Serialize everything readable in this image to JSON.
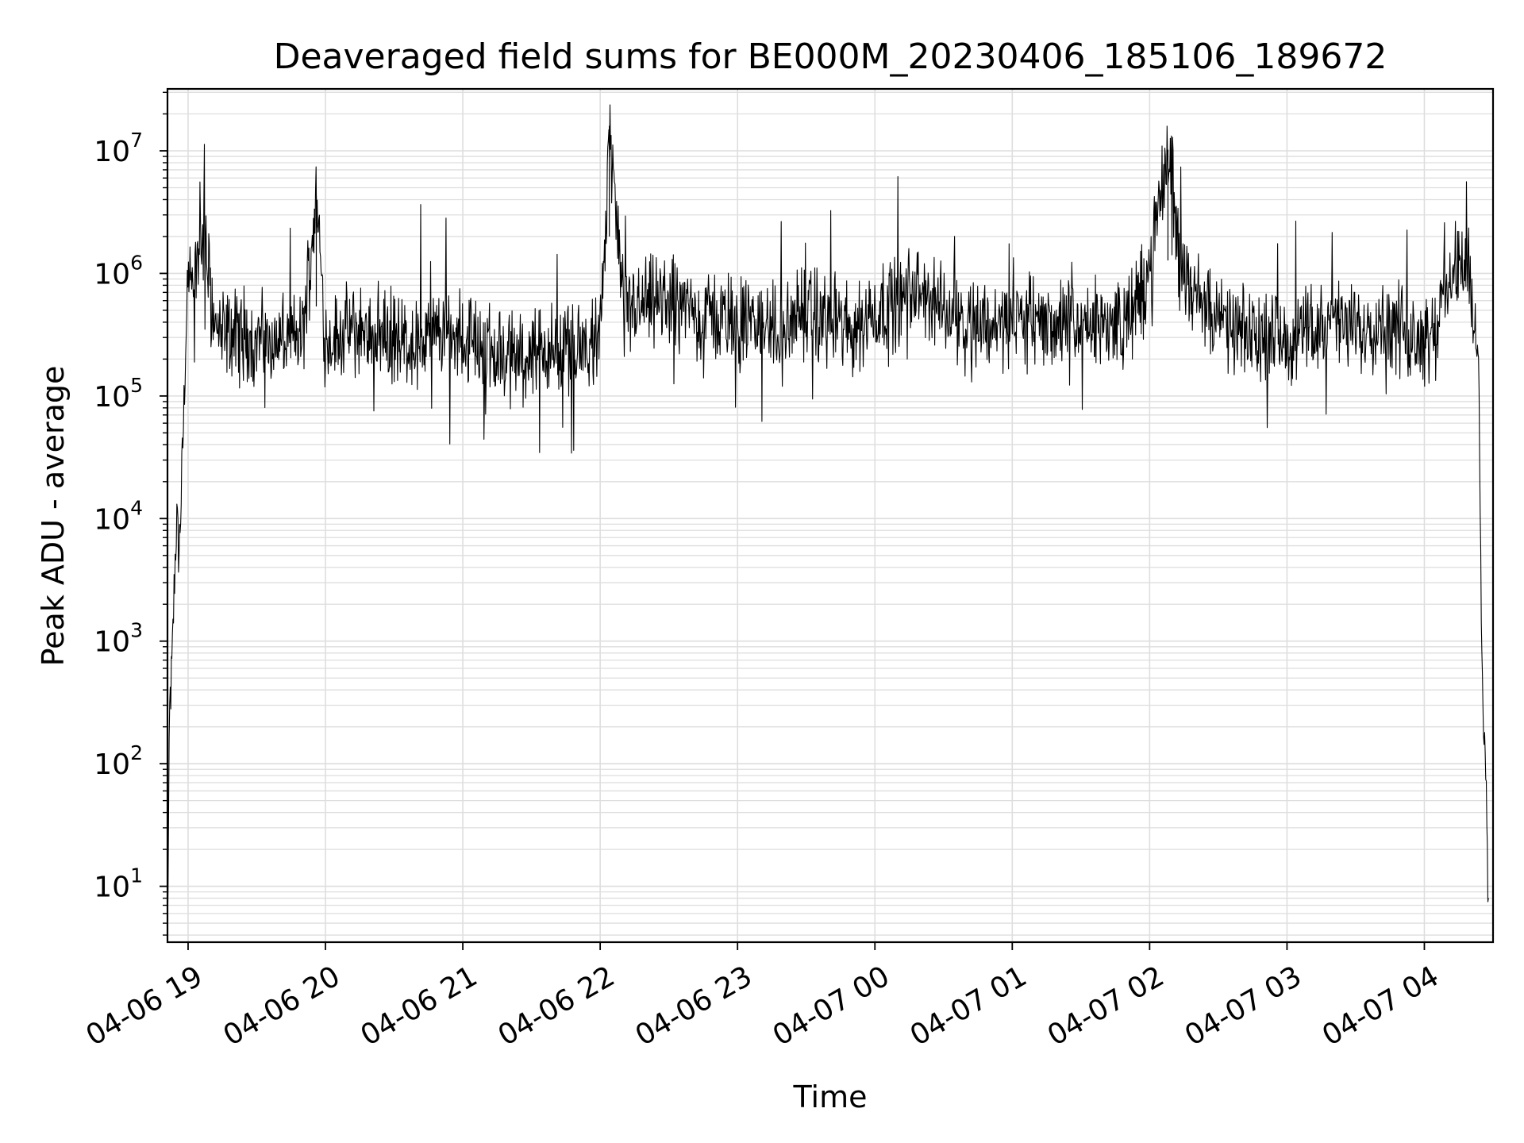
{
  "chart_data": {
    "type": "line",
    "title": "Deaveraged field sums for BE000M_20230406_185106_189672",
    "xlabel": "Time",
    "ylabel": "Peak ADU - average",
    "yscale": "log",
    "ylim": [
      3.5,
      32000000
    ],
    "xlim": [
      "2023-04-06 18:51",
      "2023-04-07 04:30"
    ],
    "grid": "on (major and minor)",
    "line_color": "#000000",
    "y_ticks": [
      {
        "base": "10",
        "exp": "1",
        "value": 10
      },
      {
        "base": "10",
        "exp": "2",
        "value": 100
      },
      {
        "base": "10",
        "exp": "3",
        "value": 1000
      },
      {
        "base": "10",
        "exp": "4",
        "value": 10000
      },
      {
        "base": "10",
        "exp": "5",
        "value": 100000
      },
      {
        "base": "10",
        "exp": "6",
        "value": 1000000
      },
      {
        "base": "10",
        "exp": "7",
        "value": 10000000
      }
    ],
    "x_ticks": [
      {
        "label": "04-06 19",
        "time": "2023-04-06 19:00"
      },
      {
        "label": "04-06 20",
        "time": "2023-04-06 20:00"
      },
      {
        "label": "04-06 21",
        "time": "2023-04-06 21:00"
      },
      {
        "label": "04-06 22",
        "time": "2023-04-06 22:00"
      },
      {
        "label": "04-06 23",
        "time": "2023-04-06 23:00"
      },
      {
        "label": "04-07 00",
        "time": "2023-04-07 00:00"
      },
      {
        "label": "04-07 01",
        "time": "2023-04-07 01:00"
      },
      {
        "label": "04-07 02",
        "time": "2023-04-07 02:00"
      },
      {
        "label": "04-07 03",
        "time": "2023-04-07 03:00"
      },
      {
        "label": "04-07 04",
        "time": "2023-04-07 04:00"
      }
    ],
    "series": [
      {
        "x": [
          "2023-04-06 18:51",
          "2023-04-06 18:52",
          "2023-04-06 18:53",
          "2023-04-06 18:54",
          "2023-04-06 18:55",
          "2023-04-06 18:56",
          "2023-04-06 18:57",
          "2023-04-06 18:58",
          "2023-04-06 18:59",
          "2023-04-06 19:00",
          "2023-04-06 19:01",
          "2023-04-06 19:03",
          "2023-04-06 19:05",
          "2023-04-06 19:07",
          "2023-04-06 19:09",
          "2023-04-06 19:12",
          "2023-04-06 19:15",
          "2023-04-06 19:20",
          "2023-04-06 19:25",
          "2023-04-06 19:30",
          "2023-04-06 19:40",
          "2023-04-06 19:50",
          "2023-04-06 19:56",
          "2023-04-06 20:00",
          "2023-04-06 20:10",
          "2023-04-06 20:20",
          "2023-04-06 20:30",
          "2023-04-06 20:40",
          "2023-04-06 20:50",
          "2023-04-06 21:00",
          "2023-04-06 21:10",
          "2023-04-06 21:20",
          "2023-04-06 21:30",
          "2023-04-06 21:40",
          "2023-04-06 21:50",
          "2023-04-06 22:00",
          "2023-04-06 22:04",
          "2023-04-06 22:10",
          "2023-04-06 22:20",
          "2023-04-06 22:30",
          "2023-04-06 22:40",
          "2023-04-06 22:50",
          "2023-04-06 23:00",
          "2023-04-06 23:10",
          "2023-04-06 23:20",
          "2023-04-06 23:30",
          "2023-04-06 23:40",
          "2023-04-06 23:50",
          "2023-04-07 00:00",
          "2023-04-07 00:10",
          "2023-04-07 00:20",
          "2023-04-07 00:30",
          "2023-04-07 00:40",
          "2023-04-07 00:50",
          "2023-04-07 01:00",
          "2023-04-07 01:10",
          "2023-04-07 01:20",
          "2023-04-07 01:30",
          "2023-04-07 01:40",
          "2023-04-07 01:50",
          "2023-04-07 02:00",
          "2023-04-07 02:08",
          "2023-04-07 02:15",
          "2023-04-07 02:25",
          "2023-04-07 02:35",
          "2023-04-07 02:45",
          "2023-04-07 02:55",
          "2023-04-07 03:05",
          "2023-04-07 03:15",
          "2023-04-07 03:25",
          "2023-04-07 03:35",
          "2023-04-07 03:45",
          "2023-04-07 03:55",
          "2023-04-07 04:05",
          "2023-04-07 04:10",
          "2023-04-07 04:15",
          "2023-04-07 04:20",
          "2023-04-07 04:22",
          "2023-04-07 04:24",
          "2023-04-07 04:25",
          "2023-04-07 04:26",
          "2023-04-07 04:27",
          "2023-04-07 04:28"
        ],
        "y": [
          4,
          300,
          600,
          3000,
          10000,
          5000,
          15000,
          60000,
          300000,
          900000,
          1100000,
          1000000,
          1500000,
          2000000,
          1000000,
          350000,
          300000,
          320000,
          280000,
          300000,
          280000,
          300000,
          4300000,
          280000,
          330000,
          350000,
          300000,
          260000,
          320000,
          300000,
          250000,
          200000,
          220000,
          240000,
          230000,
          250000,
          16000000,
          500000,
          550000,
          600000,
          500000,
          450000,
          400000,
          380000,
          350000,
          450000,
          420000,
          350000,
          500000,
          600000,
          700000,
          500000,
          450000,
          380000,
          400000,
          420000,
          380000,
          350000,
          400000,
          380000,
          1000000,
          10200000,
          900000,
          500000,
          350000,
          300000,
          320000,
          300000,
          400000,
          350000,
          380000,
          400000,
          300000,
          350000,
          800000,
          1200000,
          900000,
          400000,
          100000,
          1000,
          150,
          100,
          5
        ]
      }
    ]
  }
}
